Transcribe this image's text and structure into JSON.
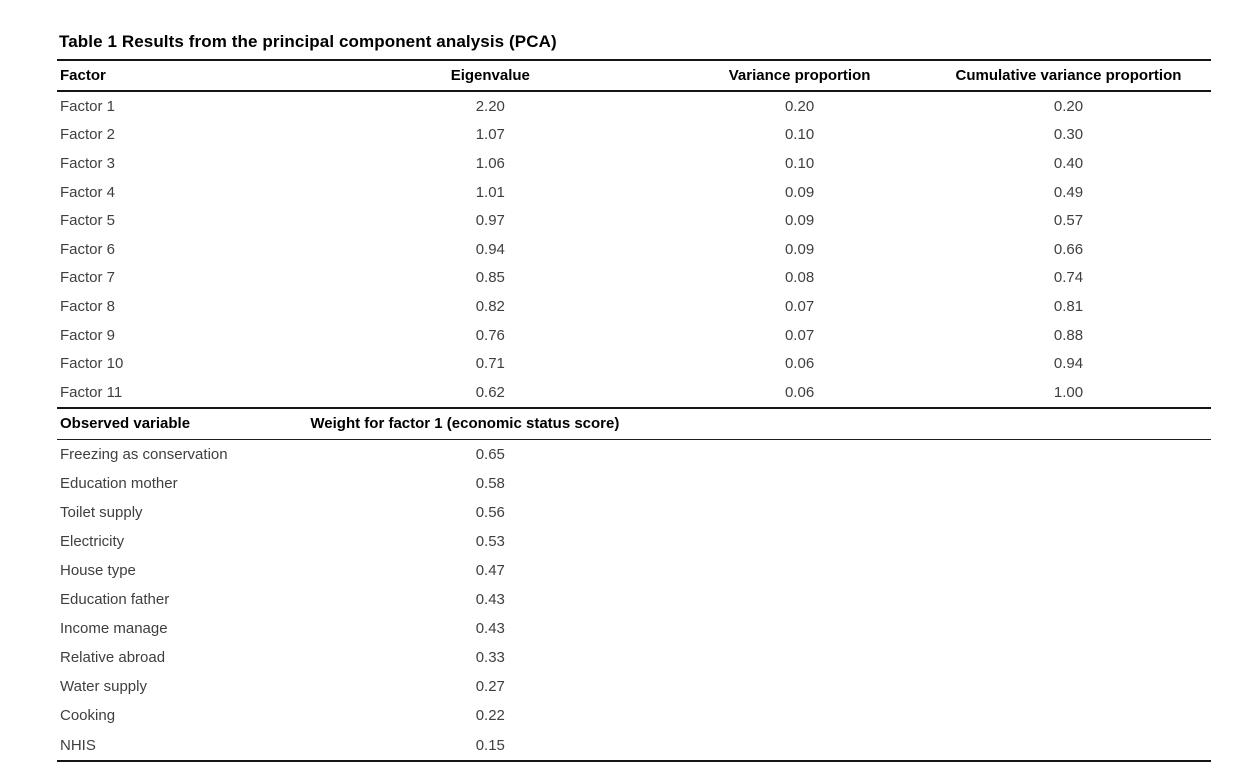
{
  "page": {
    "background_color": "#ffffff",
    "rule_color": "#151515",
    "heading_text_color": "#000000",
    "body_text_color": "#3f3f3f"
  },
  "table": {
    "title": "Table 1 Results from the principal component analysis (PCA)",
    "factors_section": {
      "headers": [
        "Factor",
        "Eigenvalue",
        "Variance proportion",
        "Cumulative variance proportion"
      ],
      "rows": [
        [
          "Factor 1",
          "2.20",
          "0.20",
          "0.20"
        ],
        [
          "Factor 2",
          "1.07",
          "0.10",
          "0.30"
        ],
        [
          "Factor 3",
          "1.06",
          "0.10",
          "0.40"
        ],
        [
          "Factor 4",
          "1.01",
          "0.09",
          "0.49"
        ],
        [
          "Factor 5",
          "0.97",
          "0.09",
          "0.57"
        ],
        [
          "Factor 6",
          "0.94",
          "0.09",
          "0.66"
        ],
        [
          "Factor 7",
          "0.85",
          "0.08",
          "0.74"
        ],
        [
          "Factor 8",
          "0.82",
          "0.07",
          "0.81"
        ],
        [
          "Factor 9",
          "0.76",
          "0.07",
          "0.88"
        ],
        [
          "Factor 10",
          "0.71",
          "0.06",
          "0.94"
        ],
        [
          "Factor 11",
          "0.62",
          "0.06",
          "1.00"
        ]
      ]
    },
    "weights_section": {
      "headers": [
        "Observed variable",
        "Weight for factor 1 (economic status score)"
      ],
      "rows": [
        [
          "Freezing as conservation",
          "0.65"
        ],
        [
          "Education mother",
          "0.58"
        ],
        [
          "Toilet supply",
          "0.56"
        ],
        [
          "Electricity",
          "0.53"
        ],
        [
          "House type",
          "0.47"
        ],
        [
          "Education father",
          "0.43"
        ],
        [
          "Income manage",
          "0.43"
        ],
        [
          "Relative abroad",
          "0.33"
        ],
        [
          "Water supply",
          "0.27"
        ],
        [
          "Cooking",
          "0.22"
        ],
        [
          "NHIS",
          "0.15"
        ]
      ]
    }
  }
}
